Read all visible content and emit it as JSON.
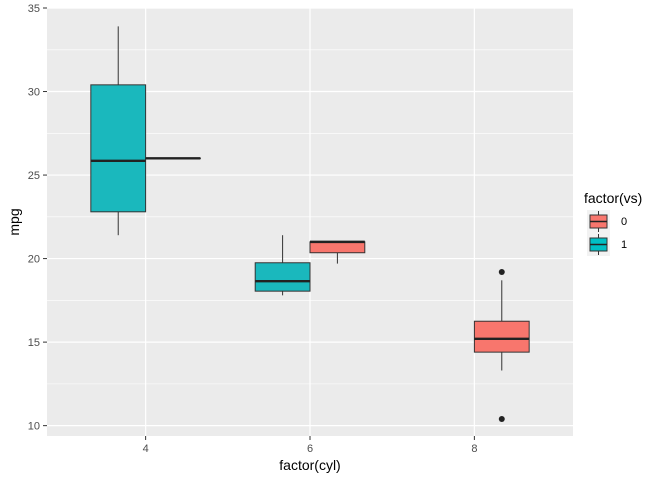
{
  "chart_data": {
    "type": "boxplot",
    "xlabel": "factor(cyl)",
    "ylabel": "mpg",
    "categories": [
      "4",
      "6",
      "8"
    ],
    "ylim": [
      9.38,
      35.0
    ],
    "yticks": [
      10,
      15,
      20,
      25,
      30,
      35
    ],
    "grid": true,
    "legend": {
      "title": "factor(vs)",
      "position": "right",
      "entries": [
        {
          "label": "0",
          "color": "#F8766D"
        },
        {
          "label": "1",
          "color": "#00BFC4"
        }
      ]
    },
    "boxes": [
      {
        "category": "4",
        "group": "1",
        "color": "#1AB8BD",
        "whisker_low": 21.4,
        "q1": 22.8,
        "median": 25.85,
        "q3": 30.4,
        "whisker_high": 33.9,
        "outliers": []
      },
      {
        "category": "4",
        "group": "0",
        "color": "#F8766D",
        "whisker_low": 26.0,
        "q1": 26.0,
        "median": 26.0,
        "q3": 26.0,
        "whisker_high": 26.0,
        "outliers": []
      },
      {
        "category": "6",
        "group": "1",
        "color": "#1AB8BD",
        "whisker_low": 17.8,
        "q1": 18.05,
        "median": 18.65,
        "q3": 19.75,
        "whisker_high": 21.4,
        "outliers": []
      },
      {
        "category": "6",
        "group": "0",
        "color": "#F8766D",
        "whisker_low": 19.7,
        "q1": 20.35,
        "median": 21.0,
        "q3": 21.0,
        "whisker_high": 21.0,
        "outliers": []
      },
      {
        "category": "8",
        "group": "0",
        "color": "#F8766D",
        "whisker_low": 13.3,
        "q1": 14.4,
        "median": 15.2,
        "q3": 16.25,
        "whisker_high": 18.7,
        "outliers": [
          19.2,
          10.4
        ]
      }
    ]
  }
}
